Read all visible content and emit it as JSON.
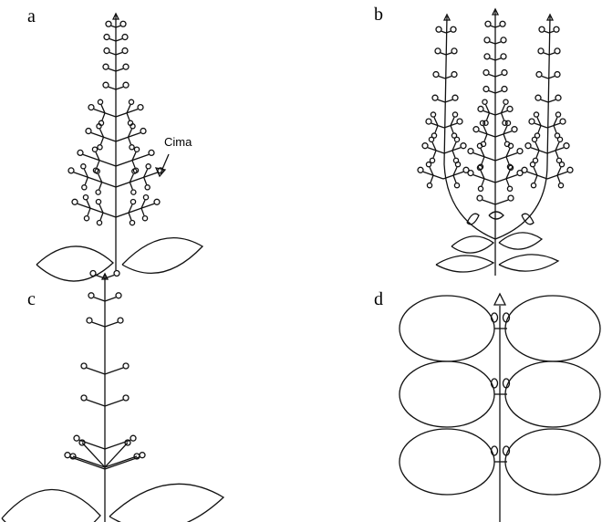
{
  "panels": [
    {
      "label": "a"
    },
    {
      "label": "b"
    },
    {
      "label": "c"
    },
    {
      "label": "d"
    }
  ],
  "annotation": "Cima"
}
